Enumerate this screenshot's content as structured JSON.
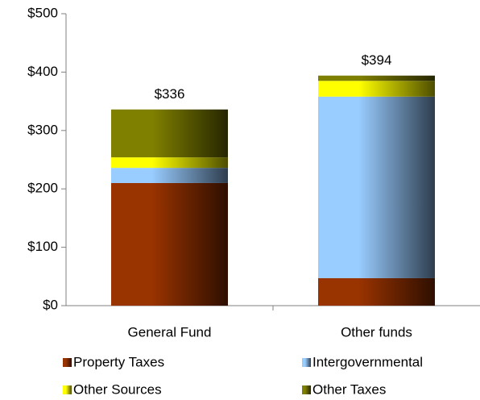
{
  "chart_data": {
    "type": "stacked_bar",
    "categories": [
      "General Fund",
      "Other funds"
    ],
    "series": [
      {
        "name": "Property Taxes",
        "color": "#993300",
        "values": [
          210,
          47
        ]
      },
      {
        "name": "Intergovernmental",
        "color": "#99ccff",
        "values": [
          26,
          311
        ]
      },
      {
        "name": "Other Sources",
        "color": "#ffff00",
        "values": [
          18,
          27
        ]
      },
      {
        "name": "Other Taxes",
        "color": "#808000",
        "values": [
          82,
          9
        ]
      }
    ],
    "totals": [
      336,
      394
    ],
    "total_labels": [
      "$336",
      "$394"
    ],
    "ylim": [
      0,
      500
    ],
    "yticks": [
      {
        "value": 0,
        "label": "$0"
      },
      {
        "value": 100,
        "label": "$100"
      },
      {
        "value": 200,
        "label": "$200"
      },
      {
        "value": 300,
        "label": "$300"
      },
      {
        "value": 400,
        "label": "$400"
      },
      {
        "value": 500,
        "label": "$500"
      }
    ],
    "legend": "bottom"
  }
}
